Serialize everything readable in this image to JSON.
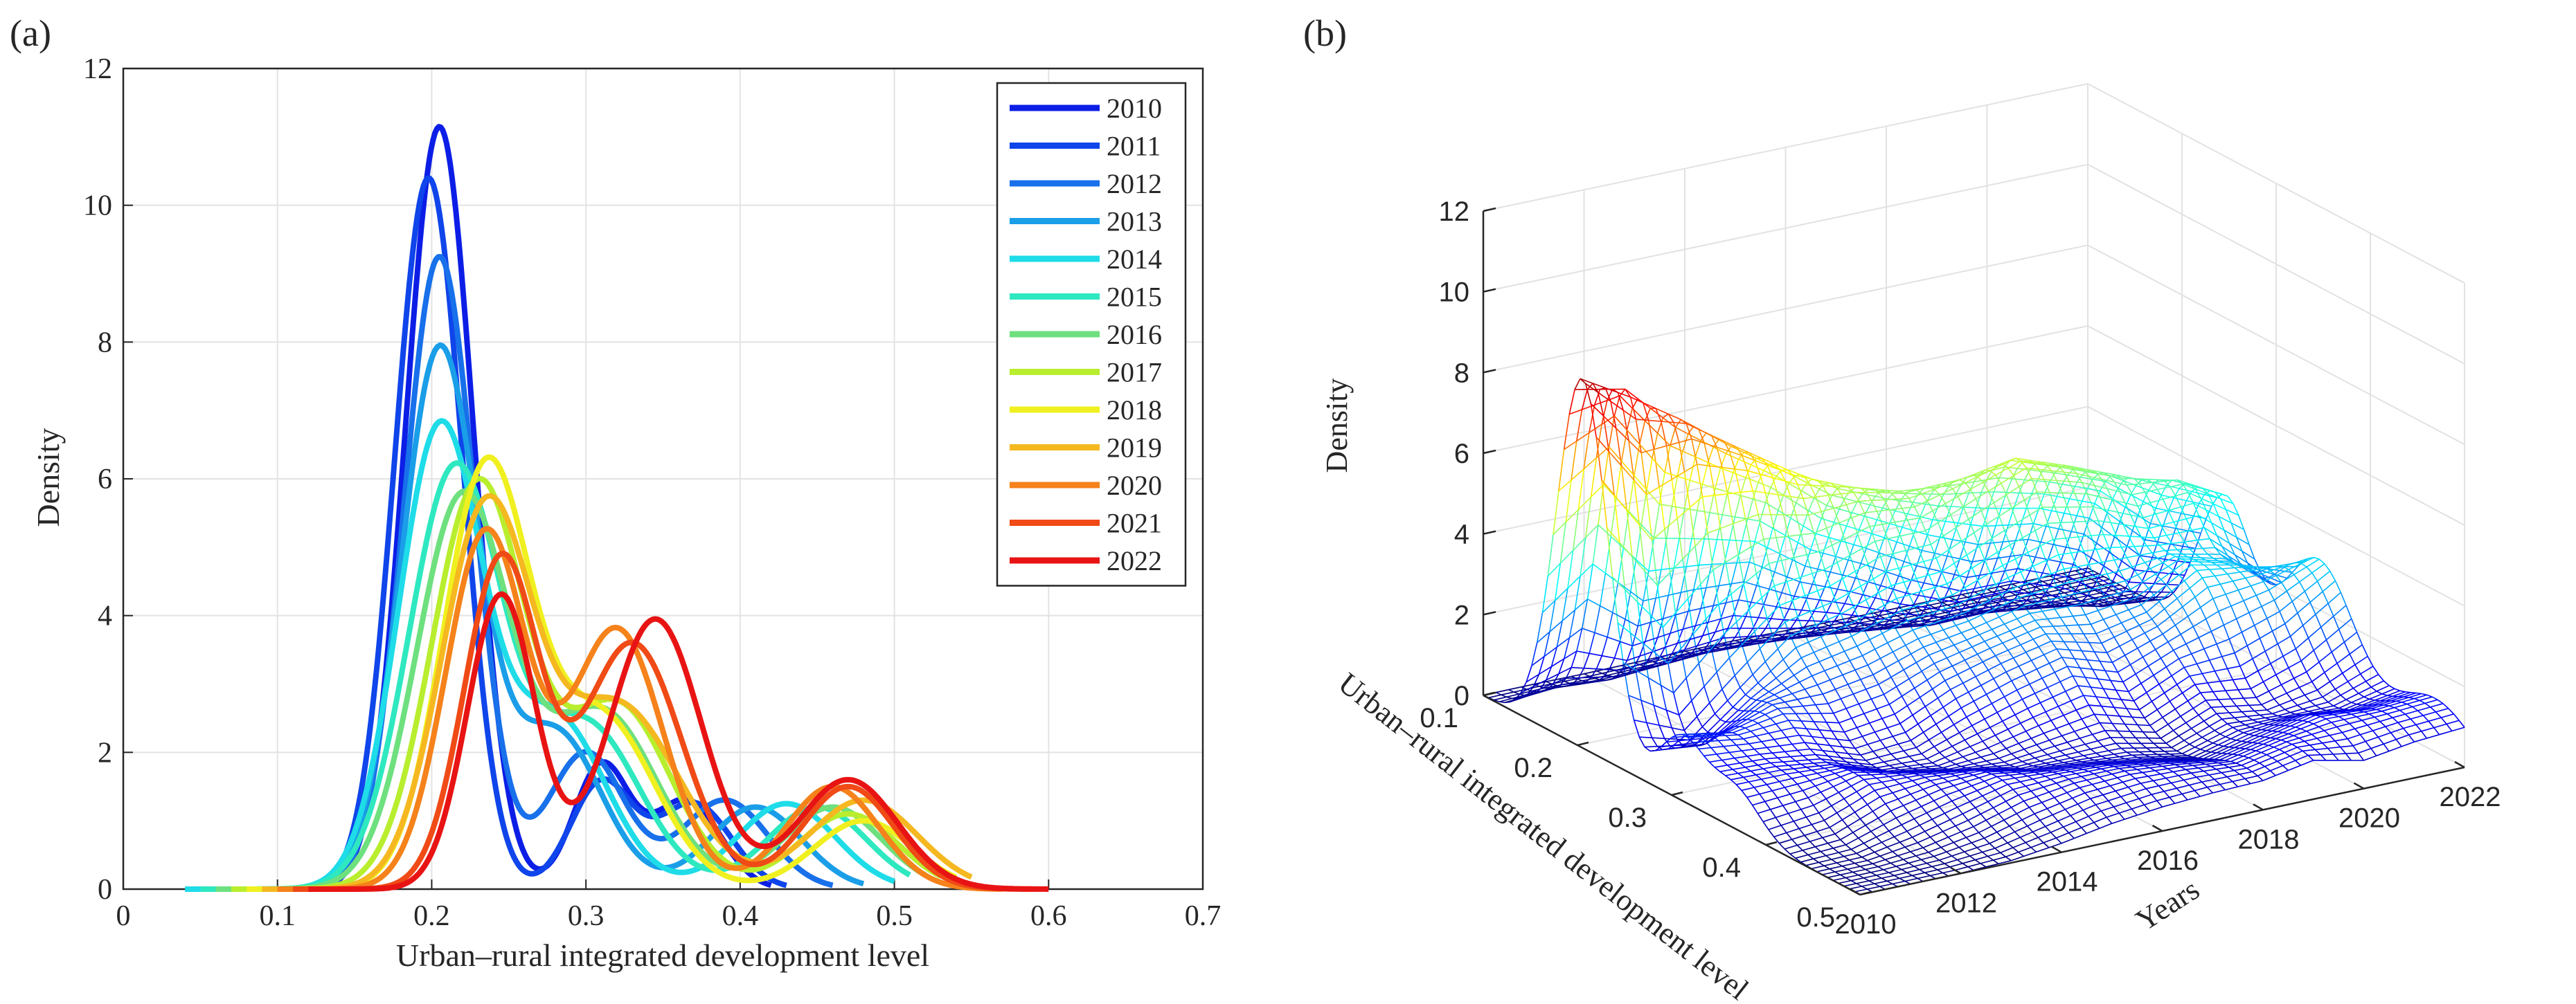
{
  "chart_data": [
    {
      "panel_label": "(a)",
      "type": "line",
      "xlabel": "Urban–rural integrated development level",
      "ylabel": "Density",
      "xlim": [
        0,
        0.7
      ],
      "ylim": [
        0,
        12
      ],
      "x_ticks": [
        "0",
        "0.1",
        "0.2",
        "0.3",
        "0.4",
        "0.5",
        "0.6",
        "0.7"
      ],
      "y_ticks": [
        "0",
        "2",
        "4",
        "6",
        "8",
        "10",
        "12"
      ],
      "grid": true,
      "legend_position": "top-right",
      "series": [
        {
          "name": "2010",
          "color": "#0c1ee6",
          "peaks": [
            [
              0.205,
              11.15
            ],
            [
              0.31,
              1.8
            ],
            [
              0.365,
              1.3
            ]
          ],
          "range": [
            0.1,
            0.42
          ],
          "widths": [
            0.022,
            0.018,
            0.022
          ]
        },
        {
          "name": "2011",
          "color": "#0f45ea",
          "peaks": [
            [
              0.198,
              10.4
            ],
            [
              0.31,
              1.55
            ],
            [
              0.37,
              1.25
            ]
          ],
          "range": [
            0.09,
            0.43
          ],
          "widths": [
            0.022,
            0.02,
            0.024
          ]
        },
        {
          "name": "2012",
          "color": "#1870ea",
          "peaks": [
            [
              0.205,
              9.25
            ],
            [
              0.3,
              2.0
            ],
            [
              0.39,
              1.3
            ]
          ],
          "range": [
            0.08,
            0.46
          ],
          "widths": [
            0.023,
            0.025,
            0.028
          ]
        },
        {
          "name": "2013",
          "color": "#1a9ee8",
          "peaks": [
            [
              0.205,
              7.85
            ],
            [
              0.28,
              2.3
            ],
            [
              0.41,
              1.2
            ]
          ],
          "range": [
            0.06,
            0.48
          ],
          "widths": [
            0.025,
            0.03,
            0.03
          ]
        },
        {
          "name": "2014",
          "color": "#1edce8",
          "peaks": [
            [
              0.205,
              6.65
            ],
            [
              0.28,
              2.5
            ],
            [
              0.43,
              1.25
            ]
          ],
          "range": [
            0.04,
            0.5
          ],
          "widths": [
            0.027,
            0.033,
            0.032
          ]
        },
        {
          "name": "2015",
          "color": "#2ee8c0",
          "peaks": [
            [
              0.215,
              6.1
            ],
            [
              0.3,
              2.4
            ],
            [
              0.45,
              1.2
            ]
          ],
          "range": [
            0.05,
            0.51
          ],
          "widths": [
            0.03,
            0.035,
            0.032
          ]
        },
        {
          "name": "2016",
          "color": "#6ee07e",
          "peaks": [
            [
              0.22,
              5.7
            ],
            [
              0.31,
              2.6
            ],
            [
              0.46,
              1.2
            ]
          ],
          "range": [
            0.06,
            0.52
          ],
          "widths": [
            0.03,
            0.036,
            0.032
          ]
        },
        {
          "name": "2017",
          "color": "#b8ee2e",
          "peaks": [
            [
              0.23,
              5.9
            ],
            [
              0.32,
              2.7
            ],
            [
              0.47,
              1.1
            ]
          ],
          "range": [
            0.07,
            0.53
          ],
          "widths": [
            0.03,
            0.035,
            0.032
          ]
        },
        {
          "name": "2018",
          "color": "#f0f020",
          "peaks": [
            [
              0.235,
              6.05
            ],
            [
              0.31,
              2.5
            ],
            [
              0.48,
              1.0
            ]
          ],
          "range": [
            0.08,
            0.54
          ],
          "widths": [
            0.028,
            0.035,
            0.032
          ]
        },
        {
          "name": "2019",
          "color": "#f5b820",
          "peaks": [
            [
              0.235,
              5.45
            ],
            [
              0.32,
              2.7
            ],
            [
              0.48,
              1.3
            ]
          ],
          "range": [
            0.09,
            0.55
          ],
          "widths": [
            0.029,
            0.04,
            0.035
          ]
        },
        {
          "name": "2020",
          "color": "#f5821a",
          "peaks": [
            [
              0.235,
              5.2
            ],
            [
              0.32,
              3.8
            ],
            [
              0.46,
              1.5
            ]
          ],
          "range": [
            0.1,
            0.57
          ],
          "widths": [
            0.026,
            0.03,
            0.03
          ]
        },
        {
          "name": "2021",
          "color": "#f04a16",
          "peaks": [
            [
              0.245,
              4.8
            ],
            [
              0.33,
              3.6
            ],
            [
              0.47,
              1.5
            ]
          ],
          "range": [
            0.11,
            0.59
          ],
          "widths": [
            0.024,
            0.032,
            0.03
          ]
        },
        {
          "name": "2022",
          "color": "#e81414",
          "peaks": [
            [
              0.245,
              4.3
            ],
            [
              0.345,
              3.95
            ],
            [
              0.47,
              1.6
            ]
          ],
          "range": [
            0.12,
            0.6
          ],
          "widths": [
            0.022,
            0.03,
            0.032
          ]
        }
      ]
    },
    {
      "panel_label": "(b)",
      "type": "surface-3d",
      "zlabel": "Density",
      "xlabel": "Urban–rural integrated development level",
      "ylabel": "Years",
      "x_ticks": [
        "0.1",
        "0.2",
        "0.3",
        "0.4",
        "0.5"
      ],
      "y_ticks": [
        "2010",
        "2012",
        "2014",
        "2016",
        "2018",
        "2020",
        "2022"
      ],
      "z_ticks": [
        "0",
        "2",
        "4",
        "6",
        "8",
        "10",
        "12"
      ],
      "xlim": [
        0.1,
        0.5
      ],
      "ylim": [
        2010,
        2022
      ],
      "zlim": [
        0,
        12
      ],
      "colormap": "jet"
    }
  ]
}
